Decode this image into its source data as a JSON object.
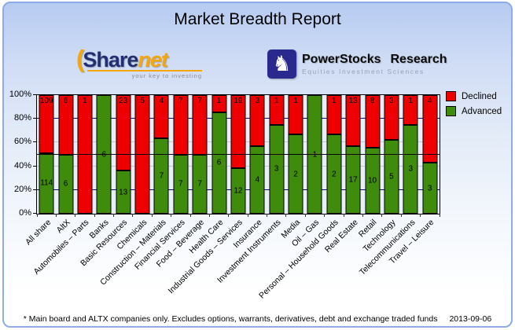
{
  "title": "Market Breadth Report",
  "logos": {
    "sharenet": {
      "paren": "(",
      "share": "Share",
      "net": "net",
      "tagline": "your key to investing"
    },
    "powerstocks": {
      "knight_glyph": "♞",
      "name_left": "PowerStocks",
      "name_right": "Research",
      "subtitle": "Equities Investment Sciences"
    }
  },
  "chart_data": {
    "type": "bar",
    "stacked": true,
    "title": "Market Breadth Report",
    "unit": "percent of companies (counts shown as labels)",
    "categories": [
      "All share",
      "AltX",
      "Automobiles – Parts",
      "Banks",
      "Basic Resources",
      "Chemicals",
      "Construction – Materials",
      "Financial Services",
      "Food – Beverage",
      "Health Care",
      "Industrial Goods – Services",
      "Insurance",
      "Investment Instruments",
      "Media",
      "Oil – Gas",
      "Personal – Household Goods",
      "Real Estate",
      "Retail",
      "Technology",
      "Telecommunications",
      "Travel – Leisure"
    ],
    "series": [
      {
        "name": "Declined",
        "color": "#ee0000",
        "values": [
          109,
          6,
          1,
          0,
          23,
          5,
          4,
          7,
          7,
          1,
          19,
          3,
          1,
          1,
          0,
          1,
          13,
          8,
          3,
          1,
          4
        ]
      },
      {
        "name": "Advanced",
        "color": "#3f8b0b",
        "values": [
          114,
          6,
          0,
          6,
          13,
          0,
          7,
          7,
          7,
          6,
          12,
          4,
          3,
          2,
          1,
          2,
          17,
          10,
          5,
          3,
          3
        ]
      }
    ],
    "ylim": [
      0,
      100
    ],
    "yticks": [
      "100%",
      "80%",
      "60%",
      "40%",
      "20%",
      "0%"
    ],
    "gridlines": {
      "navy_at": [
        80,
        20
      ],
      "light_at": [
        60,
        40
      ],
      "reference_line_at": 50
    },
    "legend_position": "top-right"
  },
  "colors": {
    "declined": "#ee0000",
    "advanced": "#3f8b0b",
    "panel_border": "#8fabe8",
    "plot_bg": "#e9eff9",
    "grid_navy": "#000080",
    "grid_light": "#c3cad6"
  },
  "footer": {
    "note": "* Main board and ALTX companies only. Excludes options, warrants, derivatives, debt and exchange traded funds",
    "date": "2013-09-06"
  }
}
